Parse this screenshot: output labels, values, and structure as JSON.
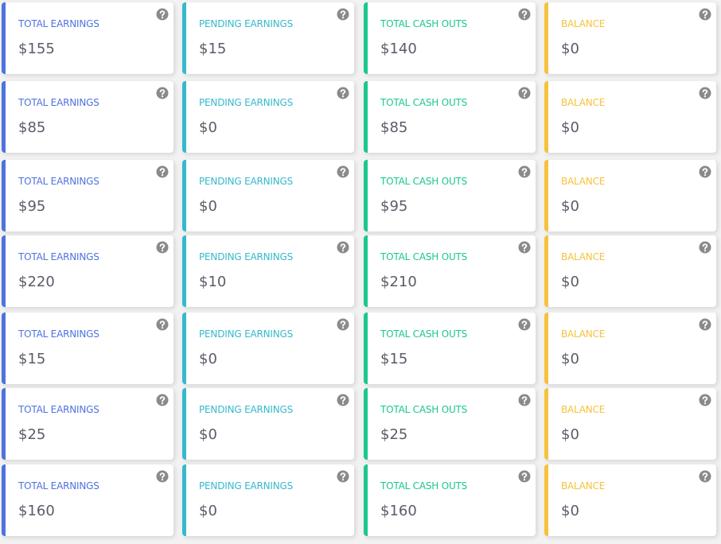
{
  "rows": [
    [
      {
        "label": "TOTAL EARNINGS",
        "value": "$155"
      },
      {
        "label": "PENDING EARNINGS",
        "value": "$15"
      },
      {
        "label": "TOTAL CASH OUTS",
        "value": "$140"
      },
      {
        "label": "BALANCE",
        "value": "$0"
      }
    ],
    [
      {
        "label": "TOTAL EARNINGS",
        "value": "$85"
      },
      {
        "label": "PENDING EARNINGS",
        "value": "$0"
      },
      {
        "label": "TOTAL CASH OUTS",
        "value": "$85"
      },
      {
        "label": "BALANCE",
        "value": "$0"
      }
    ],
    [
      {
        "label": "TOTAL EARNINGS",
        "value": "$95"
      },
      {
        "label": "PENDING EARNINGS",
        "value": "$0"
      },
      {
        "label": "TOTAL CASH OUTS",
        "value": "$95"
      },
      {
        "label": "BALANCE",
        "value": "$0"
      }
    ],
    [
      {
        "label": "TOTAL EARNINGS",
        "value": "$220"
      },
      {
        "label": "PENDING EARNINGS",
        "value": "$10"
      },
      {
        "label": "TOTAL CASH OUTS",
        "value": "$210"
      },
      {
        "label": "BALANCE",
        "value": "$0"
      }
    ],
    [
      {
        "label": "TOTAL EARNINGS",
        "value": "$15"
      },
      {
        "label": "PENDING EARNINGS",
        "value": "$0"
      },
      {
        "label": "TOTAL CASH OUTS",
        "value": "$15"
      },
      {
        "label": "BALANCE",
        "value": "$0"
      }
    ],
    [
      {
        "label": "TOTAL EARNINGS",
        "value": "$25"
      },
      {
        "label": "PENDING EARNINGS",
        "value": "$0"
      },
      {
        "label": "TOTAL CASH OUTS",
        "value": "$25"
      },
      {
        "label": "BALANCE",
        "value": "$0"
      }
    ],
    [
      {
        "label": "TOTAL EARNINGS",
        "value": "$160"
      },
      {
        "label": "PENDING EARNINGS",
        "value": "$0"
      },
      {
        "label": "TOTAL CASH OUTS",
        "value": "$160"
      },
      {
        "label": "BALANCE",
        "value": "$0"
      }
    ]
  ]
}
